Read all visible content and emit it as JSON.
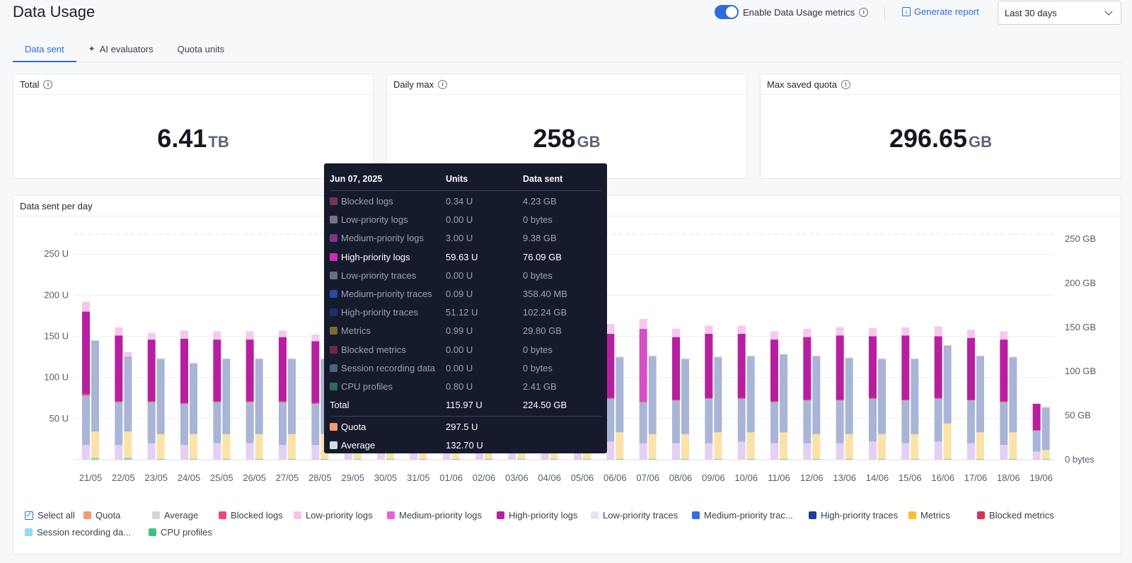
{
  "header": {
    "title": "Data Usage",
    "toggle_label": "Enable Data Usage metrics",
    "generate_label": "Generate report",
    "range_value": "Last 30 days"
  },
  "tabs": [
    {
      "label": "Data sent",
      "active": true
    },
    {
      "label": "AI evaluators",
      "active": false
    },
    {
      "label": "Quota units",
      "active": false
    }
  ],
  "kpis": [
    {
      "label": "Total",
      "value": "6.41",
      "unit": "TB"
    },
    {
      "label": "Daily max",
      "value": "258",
      "unit": "GB"
    },
    {
      "label": "Max saved quota",
      "value": "296.65",
      "unit": "GB"
    }
  ],
  "chart_title": "Data sent per day",
  "chart_data": {
    "type": "bar",
    "stacked": true,
    "categories": [
      "21/05",
      "22/05",
      "23/05",
      "24/05",
      "25/05",
      "26/05",
      "27/05",
      "28/05",
      "29/05",
      "30/05",
      "31/05",
      "01/06",
      "02/06",
      "03/06",
      "04/06",
      "05/06",
      "06/06",
      "07/06",
      "08/06",
      "09/06",
      "10/06",
      "11/06",
      "12/06",
      "13/06",
      "14/06",
      "15/06",
      "16/06",
      "17/06",
      "18/06",
      "19/06"
    ],
    "y_left": {
      "ticks": [
        "50 U",
        "100 U",
        "150 U",
        "200 U",
        "250 U"
      ],
      "range": [
        0,
        275
      ]
    },
    "y_right": {
      "ticks": [
        "0 bytes",
        "50 GB",
        "100 GB",
        "150 GB",
        "200 GB",
        "250 GB"
      ],
      "range": [
        0,
        275
      ]
    },
    "units_series": {
      "low_priority_logs_top": [
        12,
        10,
        8,
        10,
        10,
        10,
        8,
        8,
        8,
        8,
        8,
        8,
        8,
        8,
        8,
        8,
        12,
        12,
        10,
        10,
        10,
        10,
        10,
        10,
        10,
        10,
        12,
        10,
        10,
        0
      ],
      "high_priority_logs": [
        100,
        80,
        75,
        78,
        75,
        75,
        78,
        75,
        78,
        78,
        78,
        78,
        78,
        78,
        78,
        78,
        78,
        88,
        76,
        78,
        78,
        75,
        76,
        78,
        75,
        78,
        75,
        75,
        75,
        32
      ],
      "medium_priority_logs": [
        5,
        3,
        2,
        2,
        2,
        2,
        2,
        2,
        2,
        2,
        2,
        2,
        2,
        2,
        2,
        2,
        2,
        2,
        2,
        2,
        2,
        2,
        2,
        2,
        2,
        2,
        2,
        2,
        2,
        1
      ],
      "blocked_logs": [
        2,
        1,
        1,
        1,
        1,
        1,
        1,
        1,
        1,
        1,
        1,
        1,
        1,
        1,
        1,
        1,
        1,
        1,
        1,
        1,
        1,
        1,
        1,
        1,
        1,
        1,
        1,
        1,
        1,
        1
      ],
      "low_priority_logs_bottom": [
        18,
        18,
        20,
        18,
        20,
        20,
        18,
        18,
        18,
        18,
        18,
        18,
        18,
        18,
        18,
        18,
        22,
        20,
        20,
        20,
        22,
        20,
        20,
        20,
        22,
        20,
        22,
        20,
        18,
        10
      ],
      "traces_left": [
        60,
        52,
        50,
        50,
        50,
        50,
        52,
        50,
        50,
        50,
        50,
        50,
        50,
        50,
        50,
        50,
        52,
        50,
        52,
        54,
        52,
        50,
        52,
        52,
        52,
        52,
        52,
        52,
        52,
        25
      ]
    },
    "bytes_series": {
      "metrics": [
        30,
        30,
        28,
        28,
        28,
        28,
        28,
        28,
        28,
        28,
        28,
        28,
        28,
        28,
        28,
        28,
        30,
        28,
        28,
        30,
        30,
        30,
        28,
        28,
        28,
        28,
        40,
        30,
        30,
        10
      ],
      "traces_right": [
        103,
        85,
        85,
        80,
        85,
        85,
        85,
        85,
        85,
        85,
        85,
        85,
        85,
        85,
        85,
        85,
        85,
        88,
        85,
        85,
        86,
        88,
        88,
        86,
        85,
        85,
        88,
        86,
        85,
        48
      ],
      "low_priority_logs_right": [
        0,
        5,
        1,
        1,
        1,
        1,
        1,
        1,
        1,
        1,
        1,
        1,
        1,
        1,
        1,
        1,
        1,
        1,
        1,
        1,
        1,
        1,
        1,
        1,
        1,
        1,
        1,
        1,
        1,
        1
      ],
      "cpu": [
        2,
        2,
        1,
        1,
        1,
        1,
        1,
        1,
        1,
        1,
        1,
        1,
        1,
        1,
        1,
        1,
        1,
        1,
        1,
        1,
        1,
        1,
        1,
        1,
        1,
        1,
        1,
        1,
        1,
        1
      ]
    },
    "colors": {
      "high_priority_logs": "#b81fa0",
      "medium_priority_logs": "#d64fc4",
      "low_priority_logs": "#f7c7ec",
      "low_priority_logs_bottom": "#e5cff3",
      "blocked_logs": "#e84b6e",
      "traces": "#a9b5d6",
      "metrics": "#fbe2a8",
      "cpu": "#7fd6b0",
      "grid": "#eceef2",
      "average": "#e7e9ee"
    }
  },
  "legend": [
    {
      "label": "Select all",
      "type": "check"
    },
    {
      "label": "Quota",
      "color": "#f59a73"
    },
    {
      "label": "Average",
      "color": "#d3d6dd"
    },
    {
      "label": "Blocked logs",
      "color": "#e84b6e"
    },
    {
      "label": "Low-priority logs",
      "color": "#f7c1ea"
    },
    {
      "label": "Medium-priority logs",
      "color": "#ea5fdb"
    },
    {
      "label": "High-priority logs",
      "color": "#b81fa0"
    },
    {
      "label": "Low-priority traces",
      "color": "#dfe8fb"
    },
    {
      "label": "Medium-priority trac...",
      "color": "#2f6fe4"
    },
    {
      "label": "High-priority traces",
      "color": "#1e3f9f"
    },
    {
      "label": "Metrics",
      "color": "#fbbf2d"
    },
    {
      "label": "Blocked metrics",
      "color": "#d33356"
    },
    {
      "label": "Session recording da...",
      "color": "#8fdcf3"
    },
    {
      "label": "CPU profiles",
      "color": "#3fbf85"
    }
  ],
  "tooltip": {
    "date": "Jun 07, 2025",
    "col_units": "Units",
    "col_data": "Data sent",
    "rows": [
      {
        "label": "Blocked logs",
        "units": "0.34 U",
        "data": "4.23 GB",
        "color": "#7a3350",
        "dim": true
      },
      {
        "label": "Low-priority logs",
        "units": "0.00 U",
        "data": "0 bytes",
        "color": "#7c6f8c",
        "dim": true
      },
      {
        "label": "Medium-priority logs",
        "units": "3.00 U",
        "data": "9.38 GB",
        "color": "#7a3a82",
        "dim": true
      },
      {
        "label": "High-priority logs",
        "units": "59.63 U",
        "data": "76.09 GB",
        "color": "#d12bb5",
        "dim": false
      },
      {
        "label": "Low-priority traces",
        "units": "0.00 U",
        "data": "0 bytes",
        "color": "#6b7080",
        "dim": true
      },
      {
        "label": "Medium-priority traces",
        "units": "0.09 U",
        "data": "358.40 MB",
        "color": "#2a4aa0",
        "dim": true
      },
      {
        "label": "High-priority traces",
        "units": "51.12 U",
        "data": "102.24 GB",
        "color": "#1f2f6b",
        "dim": true
      },
      {
        "label": "Metrics",
        "units": "0.99 U",
        "data": "29.80 GB",
        "color": "#7c6a2e",
        "dim": true
      },
      {
        "label": "Blocked metrics",
        "units": "0.00 U",
        "data": "0 bytes",
        "color": "#6e2a3e",
        "dim": true
      },
      {
        "label": "Session recording data",
        "units": "0.00 U",
        "data": "0 bytes",
        "color": "#47657c",
        "dim": true
      },
      {
        "label": "CPU profiles",
        "units": "0.80 U",
        "data": "2.41 GB",
        "color": "#2c6a55",
        "dim": true
      }
    ],
    "total": {
      "label": "Total",
      "units": "115.97 U",
      "data": "224.50 GB"
    },
    "quota": {
      "label": "Quota",
      "units": "297.5 U",
      "color": "#f59a73"
    },
    "average": {
      "label": "Average",
      "units": "132.70 U",
      "color": "#d7dae0"
    }
  }
}
